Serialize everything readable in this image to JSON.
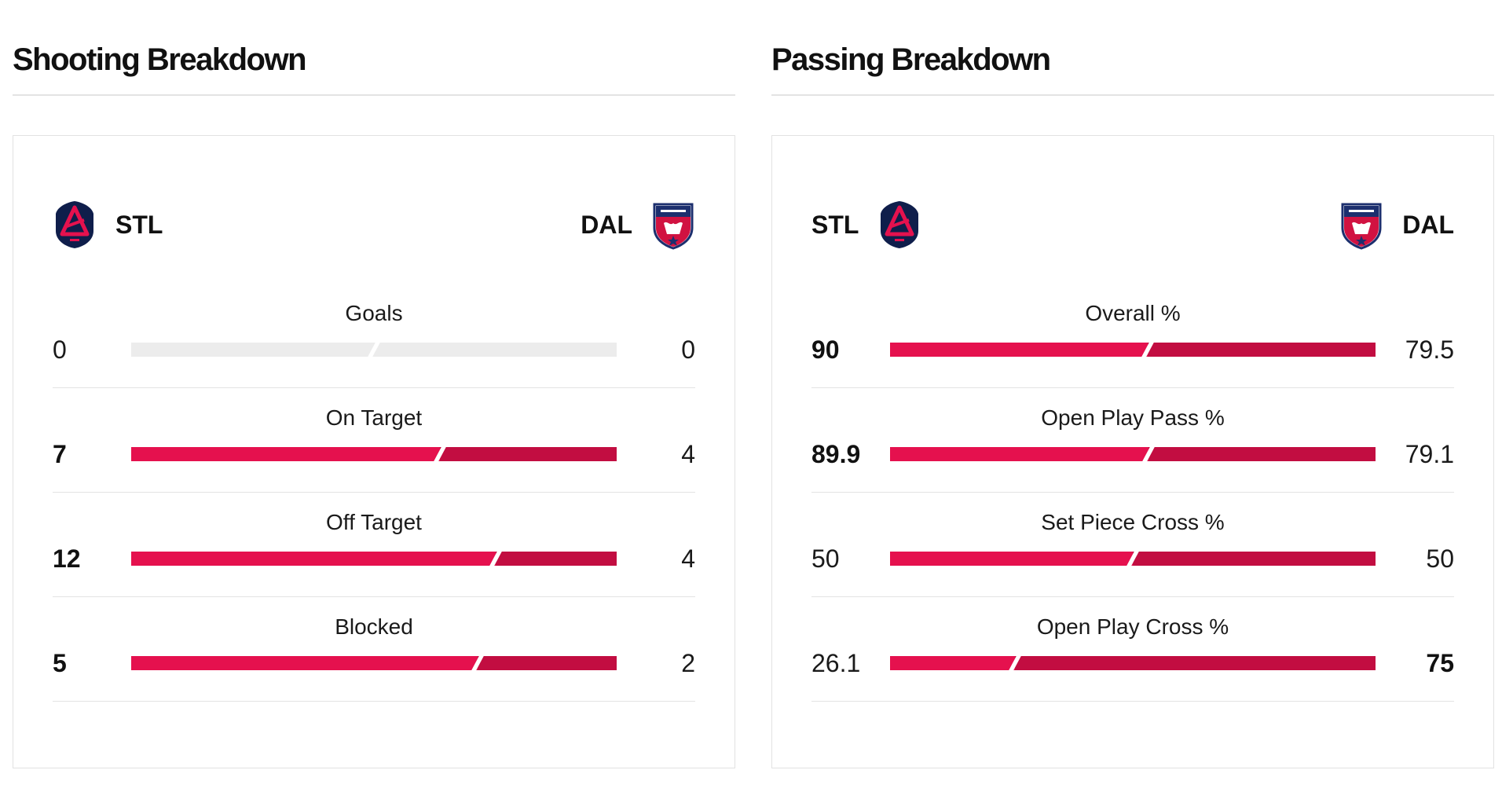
{
  "sections": [
    {
      "title": "Shooting Breakdown",
      "home": {
        "abbr": "STL",
        "crest": "st-louis-city-crest"
      },
      "away": {
        "abbr": "DAL",
        "crest": "fc-dallas-crest"
      },
      "rows": [
        {
          "label": "Goals",
          "home": "0",
          "away": "0",
          "home_share": 0.5,
          "empty": true,
          "lead": "none"
        },
        {
          "label": "On Target",
          "home": "7",
          "away": "4",
          "home_share": 0.636,
          "empty": false,
          "lead": "home"
        },
        {
          "label": "Off Target",
          "home": "12",
          "away": "4",
          "home_share": 0.75,
          "empty": false,
          "lead": "home"
        },
        {
          "label": "Blocked",
          "home": "5",
          "away": "2",
          "home_share": 0.714,
          "empty": false,
          "lead": "home"
        }
      ]
    },
    {
      "title": "Passing Breakdown",
      "home": {
        "abbr": "STL",
        "crest": "st-louis-city-crest"
      },
      "away": {
        "abbr": "DAL",
        "crest": "fc-dallas-crest"
      },
      "rows": [
        {
          "label": "Overall %",
          "home": "90",
          "away": "79.5",
          "home_share": 0.531,
          "empty": false,
          "lead": "home"
        },
        {
          "label": "Open Play Pass %",
          "home": "89.9",
          "away": "79.1",
          "home_share": 0.532,
          "empty": false,
          "lead": "home"
        },
        {
          "label": "Set Piece Cross %",
          "home": "50",
          "away": "50",
          "home_share": 0.5,
          "empty": false,
          "lead": "none"
        },
        {
          "label": "Open Play Cross %",
          "home": "26.1",
          "away": "75",
          "home_share": 0.258,
          "empty": false,
          "lead": "away"
        }
      ]
    }
  ],
  "colors": {
    "home_bar": "#e5114e",
    "away_bar": "#c20d41",
    "empty_bar": "#ececec",
    "stl_navy": "#0f1e4b",
    "dal_red": "#d11241",
    "dal_blue": "#1c2f6e"
  }
}
